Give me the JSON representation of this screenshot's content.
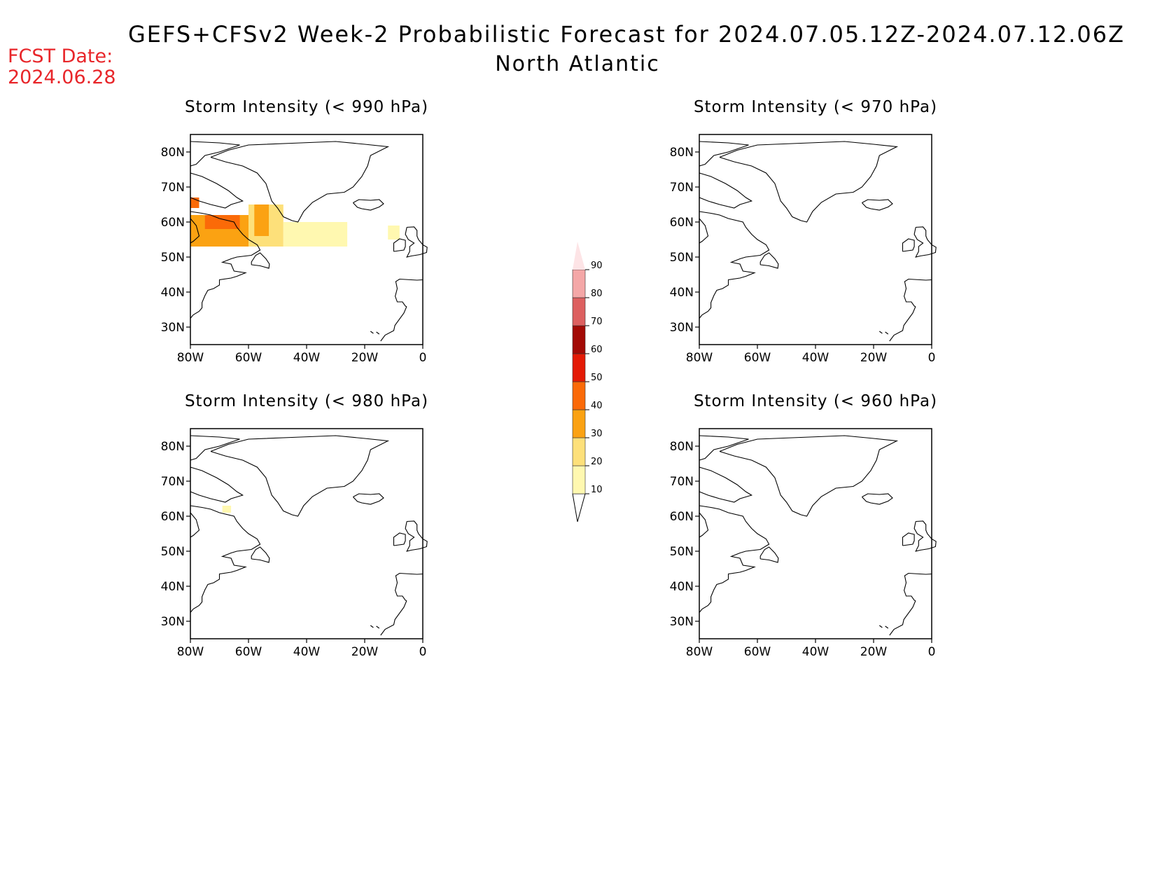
{
  "title": "GEFS+CFSv2 Week-2 Probabilistic Forecast for 2024.07.05.12Z-2024.07.12.06Z",
  "subtitle": "North Atlantic",
  "fcst_label": "FCST Date:",
  "fcst_date": "2024.06.28",
  "panels": [
    {
      "title": "Storm Intensity (< 990 hPa)",
      "field": "p990"
    },
    {
      "title": "Storm Intensity (< 970 hPa)",
      "field": "p970"
    },
    {
      "title": "Storm Intensity (< 980 hPa)",
      "field": "p980"
    },
    {
      "title": "Storm Intensity (< 960 hPa)",
      "field": "p960"
    }
  ],
  "map_extent": {
    "lon": [
      -80,
      0
    ],
    "lat": [
      25,
      85
    ]
  },
  "lat_ticks": [
    "30N",
    "40N",
    "50N",
    "60N",
    "70N",
    "80N"
  ],
  "lon_ticks": [
    "80W",
    "60W",
    "40W",
    "20W",
    "0"
  ],
  "colorbar": {
    "levels": [
      10,
      20,
      30,
      40,
      50,
      60,
      70,
      80,
      90
    ],
    "labels": [
      "10",
      "20",
      "30",
      "40",
      "50",
      "60",
      "70",
      "80",
      "90"
    ],
    "colors": [
      "#fff8b0",
      "#fde07a",
      "#fba212",
      "#fb6a08",
      "#e41a05",
      "#a30a05",
      "#dd6060",
      "#f4a7a7",
      "#fde4e6"
    ]
  },
  "chart_data": {
    "type": "heatmap",
    "units": "percent probability",
    "p990": [
      {
        "lon": [
          -80,
          -77
        ],
        "lat": [
          64,
          67
        ],
        "value": 40
      },
      {
        "lon": [
          -80,
          -60
        ],
        "lat": [
          53,
          62
        ],
        "value": 30
      },
      {
        "lon": [
          -75,
          -63
        ],
        "lat": [
          58,
          62
        ],
        "value": 40
      },
      {
        "lon": [
          -60,
          -48
        ],
        "lat": [
          53,
          65
        ],
        "value": 20
      },
      {
        "lon": [
          -58,
          -53
        ],
        "lat": [
          56,
          65
        ],
        "value": 30
      },
      {
        "lon": [
          -48,
          -26
        ],
        "lat": [
          53,
          60
        ],
        "value": 10
      },
      {
        "lon": [
          -12,
          -8
        ],
        "lat": [
          55,
          59
        ],
        "value": 10
      }
    ],
    "p980": [
      {
        "lon": [
          -69,
          -66
        ],
        "lat": [
          61,
          63
        ],
        "value": 10
      }
    ],
    "p970": [],
    "p960": []
  }
}
